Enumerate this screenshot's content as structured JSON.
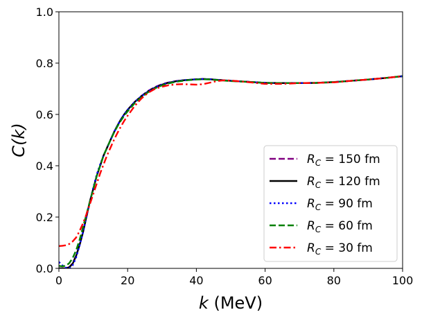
{
  "chart_data": {
    "type": "line",
    "title": "",
    "xlabel_var": "k",
    "xlabel_unit": " (MeV)",
    "ylabel": "C(k)",
    "xlim": [
      0,
      100
    ],
    "ylim": [
      0,
      1.0
    ],
    "x_ticks": [
      0,
      20,
      40,
      60,
      80,
      100
    ],
    "x_tick_labels": [
      "0",
      "20",
      "40",
      "60",
      "80",
      "100"
    ],
    "y_ticks": [
      0,
      0.2,
      0.4,
      0.6,
      0.8,
      1.0
    ],
    "y_tick_labels": [
      "0.0",
      "0.2",
      "0.4",
      "0.6",
      "0.8",
      "1.0"
    ],
    "grid": false,
    "legend_position": "lower-right",
    "series": [
      {
        "name": "RC = 150 fm",
        "legend_prefix": "R",
        "legend_sub": "C",
        "legend_value": " = 150 fm",
        "color": "#800080",
        "style": "dashed",
        "x": [
          0,
          2,
          3,
          4,
          5,
          6,
          7,
          8,
          9,
          10,
          11,
          12,
          13,
          14,
          15,
          16,
          17,
          18,
          19,
          20,
          22,
          24,
          26,
          28,
          30,
          32,
          34,
          36,
          38,
          40,
          42,
          44,
          46,
          48,
          50,
          55,
          60,
          65,
          70,
          75,
          80,
          85,
          90,
          95,
          100
        ],
        "y": [
          0.0,
          0.0,
          0.005,
          0.02,
          0.05,
          0.09,
          0.14,
          0.2,
          0.26,
          0.31,
          0.36,
          0.4,
          0.44,
          0.47,
          0.5,
          0.53,
          0.555,
          0.58,
          0.6,
          0.618,
          0.648,
          0.672,
          0.692,
          0.707,
          0.718,
          0.725,
          0.73,
          0.733,
          0.735,
          0.737,
          0.738,
          0.737,
          0.735,
          0.733,
          0.731,
          0.727,
          0.723,
          0.722,
          0.722,
          0.723,
          0.726,
          0.731,
          0.736,
          0.742,
          0.749
        ]
      },
      {
        "name": "RC = 120 fm",
        "legend_prefix": "R",
        "legend_sub": "C",
        "legend_value": " = 120 fm",
        "color": "#000000",
        "style": "solid",
        "x": [
          0,
          2,
          3,
          4,
          5,
          6,
          7,
          8,
          9,
          10,
          11,
          12,
          13,
          14,
          15,
          16,
          17,
          18,
          19,
          20,
          22,
          24,
          26,
          28,
          30,
          32,
          34,
          36,
          38,
          40,
          42,
          44,
          46,
          48,
          50,
          55,
          60,
          65,
          70,
          75,
          80,
          85,
          90,
          95,
          100
        ],
        "y": [
          0.0,
          0.0,
          0.004,
          0.018,
          0.048,
          0.09,
          0.14,
          0.2,
          0.26,
          0.31,
          0.36,
          0.4,
          0.44,
          0.47,
          0.5,
          0.53,
          0.556,
          0.58,
          0.6,
          0.618,
          0.648,
          0.671,
          0.69,
          0.705,
          0.716,
          0.724,
          0.729,
          0.733,
          0.735,
          0.737,
          0.738,
          0.737,
          0.735,
          0.733,
          0.731,
          0.727,
          0.723,
          0.722,
          0.722,
          0.723,
          0.726,
          0.731,
          0.736,
          0.742,
          0.749
        ]
      },
      {
        "name": "RC = 90 fm",
        "legend_prefix": "R",
        "legend_sub": "C",
        "legend_value": " = 90 fm",
        "color": "#0000ff",
        "style": "dotted",
        "x": [
          0,
          1,
          2,
          3,
          4,
          5,
          6,
          7,
          8,
          9,
          10,
          11,
          12,
          13,
          14,
          15,
          16,
          17,
          18,
          19,
          20,
          22,
          24,
          26,
          28,
          30,
          32,
          34,
          36,
          38,
          40,
          42,
          44,
          46,
          48,
          50,
          55,
          60,
          65,
          70,
          75,
          80,
          85,
          90,
          95,
          100
        ],
        "y": [
          0.025,
          0.012,
          0.003,
          0.0,
          0.012,
          0.042,
          0.088,
          0.14,
          0.2,
          0.26,
          0.315,
          0.365,
          0.405,
          0.44,
          0.47,
          0.5,
          0.53,
          0.556,
          0.58,
          0.6,
          0.618,
          0.648,
          0.671,
          0.69,
          0.705,
          0.716,
          0.724,
          0.729,
          0.733,
          0.735,
          0.737,
          0.738,
          0.737,
          0.735,
          0.733,
          0.731,
          0.727,
          0.723,
          0.722,
          0.722,
          0.723,
          0.726,
          0.731,
          0.736,
          0.742,
          0.749
        ]
      },
      {
        "name": "RC = 60 fm",
        "legend_prefix": "R",
        "legend_sub": "C",
        "legend_value": " = 60 fm",
        "color": "#008000",
        "style": "dashed",
        "x": [
          0,
          1,
          2,
          3,
          4,
          5,
          6,
          7,
          8,
          9,
          10,
          11,
          12,
          13,
          14,
          15,
          16,
          17,
          18,
          19,
          20,
          22,
          24,
          26,
          28,
          30,
          32,
          34,
          36,
          38,
          40,
          42,
          44,
          46,
          48,
          50,
          55,
          60,
          65,
          70,
          75,
          80,
          85,
          90,
          95,
          100
        ],
        "y": [
          0.01,
          0.008,
          0.01,
          0.02,
          0.04,
          0.07,
          0.11,
          0.16,
          0.21,
          0.26,
          0.31,
          0.36,
          0.4,
          0.44,
          0.47,
          0.5,
          0.528,
          0.553,
          0.575,
          0.595,
          0.612,
          0.643,
          0.667,
          0.687,
          0.702,
          0.713,
          0.721,
          0.727,
          0.731,
          0.734,
          0.736,
          0.737,
          0.736,
          0.734,
          0.732,
          0.73,
          0.727,
          0.723,
          0.722,
          0.722,
          0.723,
          0.726,
          0.731,
          0.736,
          0.742,
          0.749
        ]
      },
      {
        "name": "RC = 30 fm",
        "legend_prefix": "R",
        "legend_sub": "C",
        "legend_value": " = 30 fm",
        "color": "#ff0000",
        "style": "dashdot",
        "x": [
          0,
          1,
          2,
          3,
          4,
          5,
          6,
          7,
          8,
          9,
          10,
          11,
          12,
          13,
          14,
          15,
          16,
          17,
          18,
          19,
          20,
          22,
          24,
          26,
          28,
          30,
          32,
          34,
          36,
          38,
          40,
          42,
          44,
          46,
          48,
          50,
          55,
          60,
          65,
          70,
          75,
          80,
          85,
          90,
          95,
          100
        ],
        "y": [
          0.087,
          0.088,
          0.09,
          0.095,
          0.105,
          0.12,
          0.145,
          0.175,
          0.21,
          0.25,
          0.29,
          0.33,
          0.37,
          0.405,
          0.44,
          0.47,
          0.5,
          0.527,
          0.552,
          0.575,
          0.595,
          0.632,
          0.662,
          0.685,
          0.7,
          0.708,
          0.714,
          0.717,
          0.718,
          0.717,
          0.716,
          0.718,
          0.724,
          0.73,
          0.733,
          0.732,
          0.726,
          0.719,
          0.719,
          0.722,
          0.723,
          0.725,
          0.731,
          0.736,
          0.742,
          0.749
        ]
      }
    ]
  }
}
